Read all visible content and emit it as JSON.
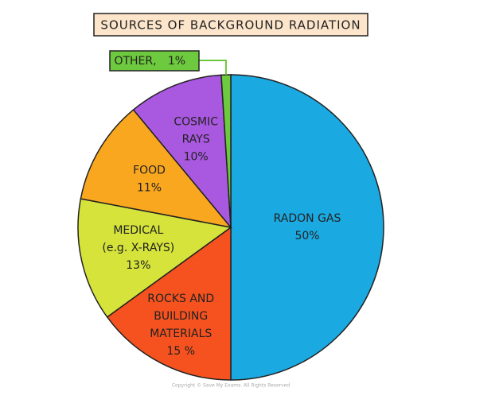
{
  "chart_data": {
    "type": "pie",
    "title": "SOURCES OF BACKGROUND RADIATION",
    "categories": [
      [
        "RADON GAS"
      ],
      [
        "ROCKS AND",
        "BUILDING",
        "MATERIALS"
      ],
      [
        "MEDICAL",
        "(e.g. X-RAYS)"
      ],
      [
        "FOOD"
      ],
      [
        "COSMIC",
        "RAYS"
      ],
      [
        "OTHER,"
      ]
    ],
    "values": [
      50,
      15,
      13,
      11,
      10,
      1
    ],
    "value_labels": [
      "50%",
      "15 %",
      "13%",
      "11%",
      "10%",
      "1%"
    ],
    "colors": [
      "#1ba9e1",
      "#f5521f",
      "#d5e33b",
      "#f9a71f",
      "#a958e0",
      "#6dc93d"
    ],
    "copyright": "Copyright © Save My Exams. All Rights Reserved"
  }
}
